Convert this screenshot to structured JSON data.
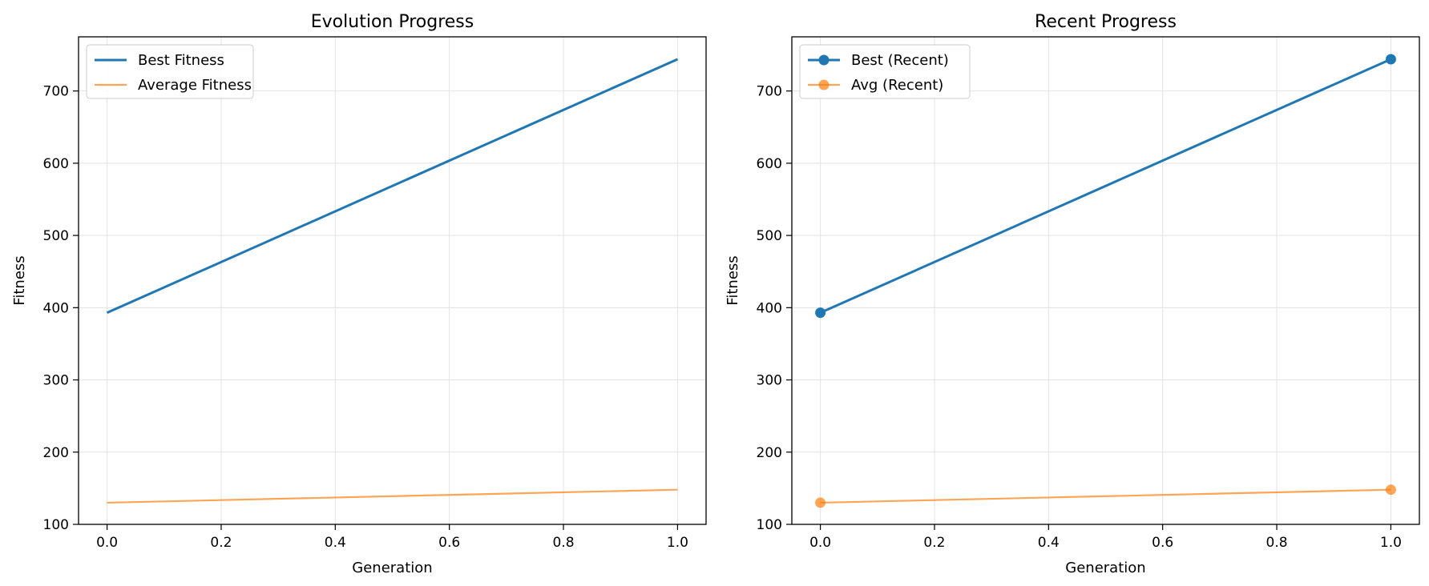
{
  "chart_data": [
    {
      "type": "line",
      "title": "Evolution Progress",
      "xlabel": "Generation",
      "ylabel": "Fitness",
      "xlim": [
        -0.05,
        1.05
      ],
      "ylim": [
        100,
        775
      ],
      "xticks": [
        0.0,
        0.2,
        0.4,
        0.6,
        0.8,
        1.0
      ],
      "xtick_labels": [
        "0.0",
        "0.2",
        "0.4",
        "0.6",
        "0.8",
        "1.0"
      ],
      "yticks": [
        100,
        200,
        300,
        400,
        500,
        600,
        700
      ],
      "ytick_labels": [
        "100",
        "200",
        "300",
        "400",
        "500",
        "600",
        "700"
      ],
      "grid": true,
      "legend_position": "top-left",
      "series": [
        {
          "name": "Best Fitness",
          "x": [
            0,
            1
          ],
          "values": [
            393,
            744
          ],
          "color": "#1f77b4",
          "markers": false
        },
        {
          "name": "Average Fitness",
          "x": [
            0,
            1
          ],
          "values": [
            130,
            148
          ],
          "color": "#ff7f0e",
          "markers": false
        }
      ]
    },
    {
      "type": "line",
      "title": "Recent Progress",
      "xlabel": "Generation",
      "ylabel": "Fitness",
      "xlim": [
        -0.05,
        1.05
      ],
      "ylim": [
        100,
        775
      ],
      "xticks": [
        0.0,
        0.2,
        0.4,
        0.6,
        0.8,
        1.0
      ],
      "xtick_labels": [
        "0.0",
        "0.2",
        "0.4",
        "0.6",
        "0.8",
        "1.0"
      ],
      "yticks": [
        100,
        200,
        300,
        400,
        500,
        600,
        700
      ],
      "ytick_labels": [
        "100",
        "200",
        "300",
        "400",
        "500",
        "600",
        "700"
      ],
      "grid": true,
      "legend_position": "top-left",
      "series": [
        {
          "name": "Best (Recent)",
          "x": [
            0,
            1
          ],
          "values": [
            393,
            744
          ],
          "color": "#1f77b4",
          "markers": true
        },
        {
          "name": "Avg (Recent)",
          "x": [
            0,
            1
          ],
          "values": [
            130,
            148
          ],
          "color": "#ff7f0e",
          "markers": true
        }
      ]
    }
  ]
}
